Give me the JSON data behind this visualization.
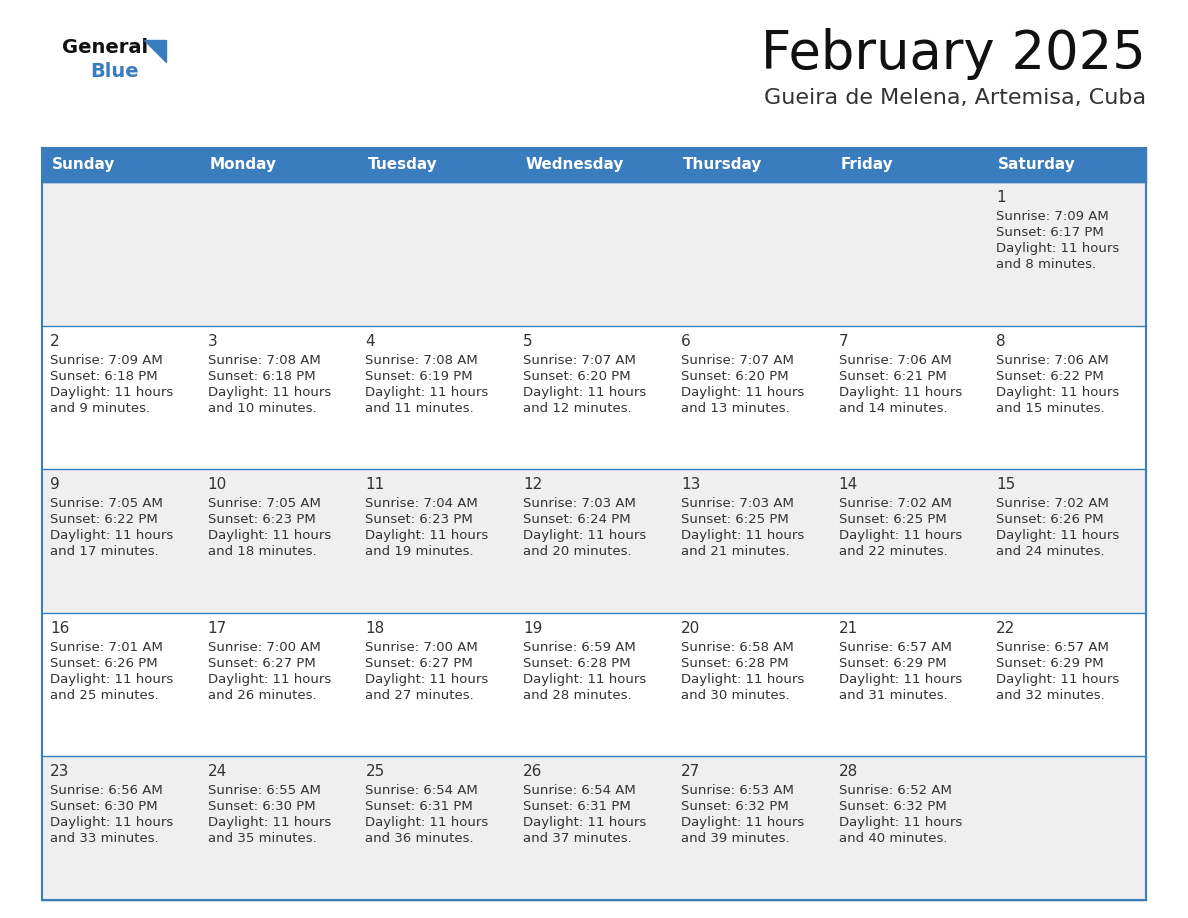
{
  "title": "February 2025",
  "subtitle": "Gueira de Melena, Artemisa, Cuba",
  "header_color": "#3a7dbf",
  "header_text_color": "#ffffff",
  "days_of_week": [
    "Sunday",
    "Monday",
    "Tuesday",
    "Wednesday",
    "Thursday",
    "Friday",
    "Saturday"
  ],
  "bg_color": "#ffffff",
  "cell_bg_even": "#efefef",
  "cell_bg_odd": "#ffffff",
  "day_number_color": "#333333",
  "info_text_color": "#333333",
  "border_color": "#3a7dbf",
  "logo_general_color": "#111111",
  "logo_blue_color": "#3a7dbf",
  "logo_triangle_color": "#3a7dbf",
  "title_color": "#111111",
  "subtitle_color": "#333333",
  "calendar_data": [
    [
      null,
      null,
      null,
      null,
      null,
      null,
      {
        "day": 1,
        "sunrise": "7:09 AM",
        "sunset": "6:17 PM",
        "daylight": "11 hours and 8 minutes."
      }
    ],
    [
      {
        "day": 2,
        "sunrise": "7:09 AM",
        "sunset": "6:18 PM",
        "daylight": "11 hours and 9 minutes."
      },
      {
        "day": 3,
        "sunrise": "7:08 AM",
        "sunset": "6:18 PM",
        "daylight": "11 hours and 10 minutes."
      },
      {
        "day": 4,
        "sunrise": "7:08 AM",
        "sunset": "6:19 PM",
        "daylight": "11 hours and 11 minutes."
      },
      {
        "day": 5,
        "sunrise": "7:07 AM",
        "sunset": "6:20 PM",
        "daylight": "11 hours and 12 minutes."
      },
      {
        "day": 6,
        "sunrise": "7:07 AM",
        "sunset": "6:20 PM",
        "daylight": "11 hours and 13 minutes."
      },
      {
        "day": 7,
        "sunrise": "7:06 AM",
        "sunset": "6:21 PM",
        "daylight": "11 hours and 14 minutes."
      },
      {
        "day": 8,
        "sunrise": "7:06 AM",
        "sunset": "6:22 PM",
        "daylight": "11 hours and 15 minutes."
      }
    ],
    [
      {
        "day": 9,
        "sunrise": "7:05 AM",
        "sunset": "6:22 PM",
        "daylight": "11 hours and 17 minutes."
      },
      {
        "day": 10,
        "sunrise": "7:05 AM",
        "sunset": "6:23 PM",
        "daylight": "11 hours and 18 minutes."
      },
      {
        "day": 11,
        "sunrise": "7:04 AM",
        "sunset": "6:23 PM",
        "daylight": "11 hours and 19 minutes."
      },
      {
        "day": 12,
        "sunrise": "7:03 AM",
        "sunset": "6:24 PM",
        "daylight": "11 hours and 20 minutes."
      },
      {
        "day": 13,
        "sunrise": "7:03 AM",
        "sunset": "6:25 PM",
        "daylight": "11 hours and 21 minutes."
      },
      {
        "day": 14,
        "sunrise": "7:02 AM",
        "sunset": "6:25 PM",
        "daylight": "11 hours and 22 minutes."
      },
      {
        "day": 15,
        "sunrise": "7:02 AM",
        "sunset": "6:26 PM",
        "daylight": "11 hours and 24 minutes."
      }
    ],
    [
      {
        "day": 16,
        "sunrise": "7:01 AM",
        "sunset": "6:26 PM",
        "daylight": "11 hours and 25 minutes."
      },
      {
        "day": 17,
        "sunrise": "7:00 AM",
        "sunset": "6:27 PM",
        "daylight": "11 hours and 26 minutes."
      },
      {
        "day": 18,
        "sunrise": "7:00 AM",
        "sunset": "6:27 PM",
        "daylight": "11 hours and 27 minutes."
      },
      {
        "day": 19,
        "sunrise": "6:59 AM",
        "sunset": "6:28 PM",
        "daylight": "11 hours and 28 minutes."
      },
      {
        "day": 20,
        "sunrise": "6:58 AM",
        "sunset": "6:28 PM",
        "daylight": "11 hours and 30 minutes."
      },
      {
        "day": 21,
        "sunrise": "6:57 AM",
        "sunset": "6:29 PM",
        "daylight": "11 hours and 31 minutes."
      },
      {
        "day": 22,
        "sunrise": "6:57 AM",
        "sunset": "6:29 PM",
        "daylight": "11 hours and 32 minutes."
      }
    ],
    [
      {
        "day": 23,
        "sunrise": "6:56 AM",
        "sunset": "6:30 PM",
        "daylight": "11 hours and 33 minutes."
      },
      {
        "day": 24,
        "sunrise": "6:55 AM",
        "sunset": "6:30 PM",
        "daylight": "11 hours and 35 minutes."
      },
      {
        "day": 25,
        "sunrise": "6:54 AM",
        "sunset": "6:31 PM",
        "daylight": "11 hours and 36 minutes."
      },
      {
        "day": 26,
        "sunrise": "6:54 AM",
        "sunset": "6:31 PM",
        "daylight": "11 hours and 37 minutes."
      },
      {
        "day": 27,
        "sunrise": "6:53 AM",
        "sunset": "6:32 PM",
        "daylight": "11 hours and 39 minutes."
      },
      {
        "day": 28,
        "sunrise": "6:52 AM",
        "sunset": "6:32 PM",
        "daylight": "11 hours and 40 minutes."
      },
      null
    ]
  ]
}
